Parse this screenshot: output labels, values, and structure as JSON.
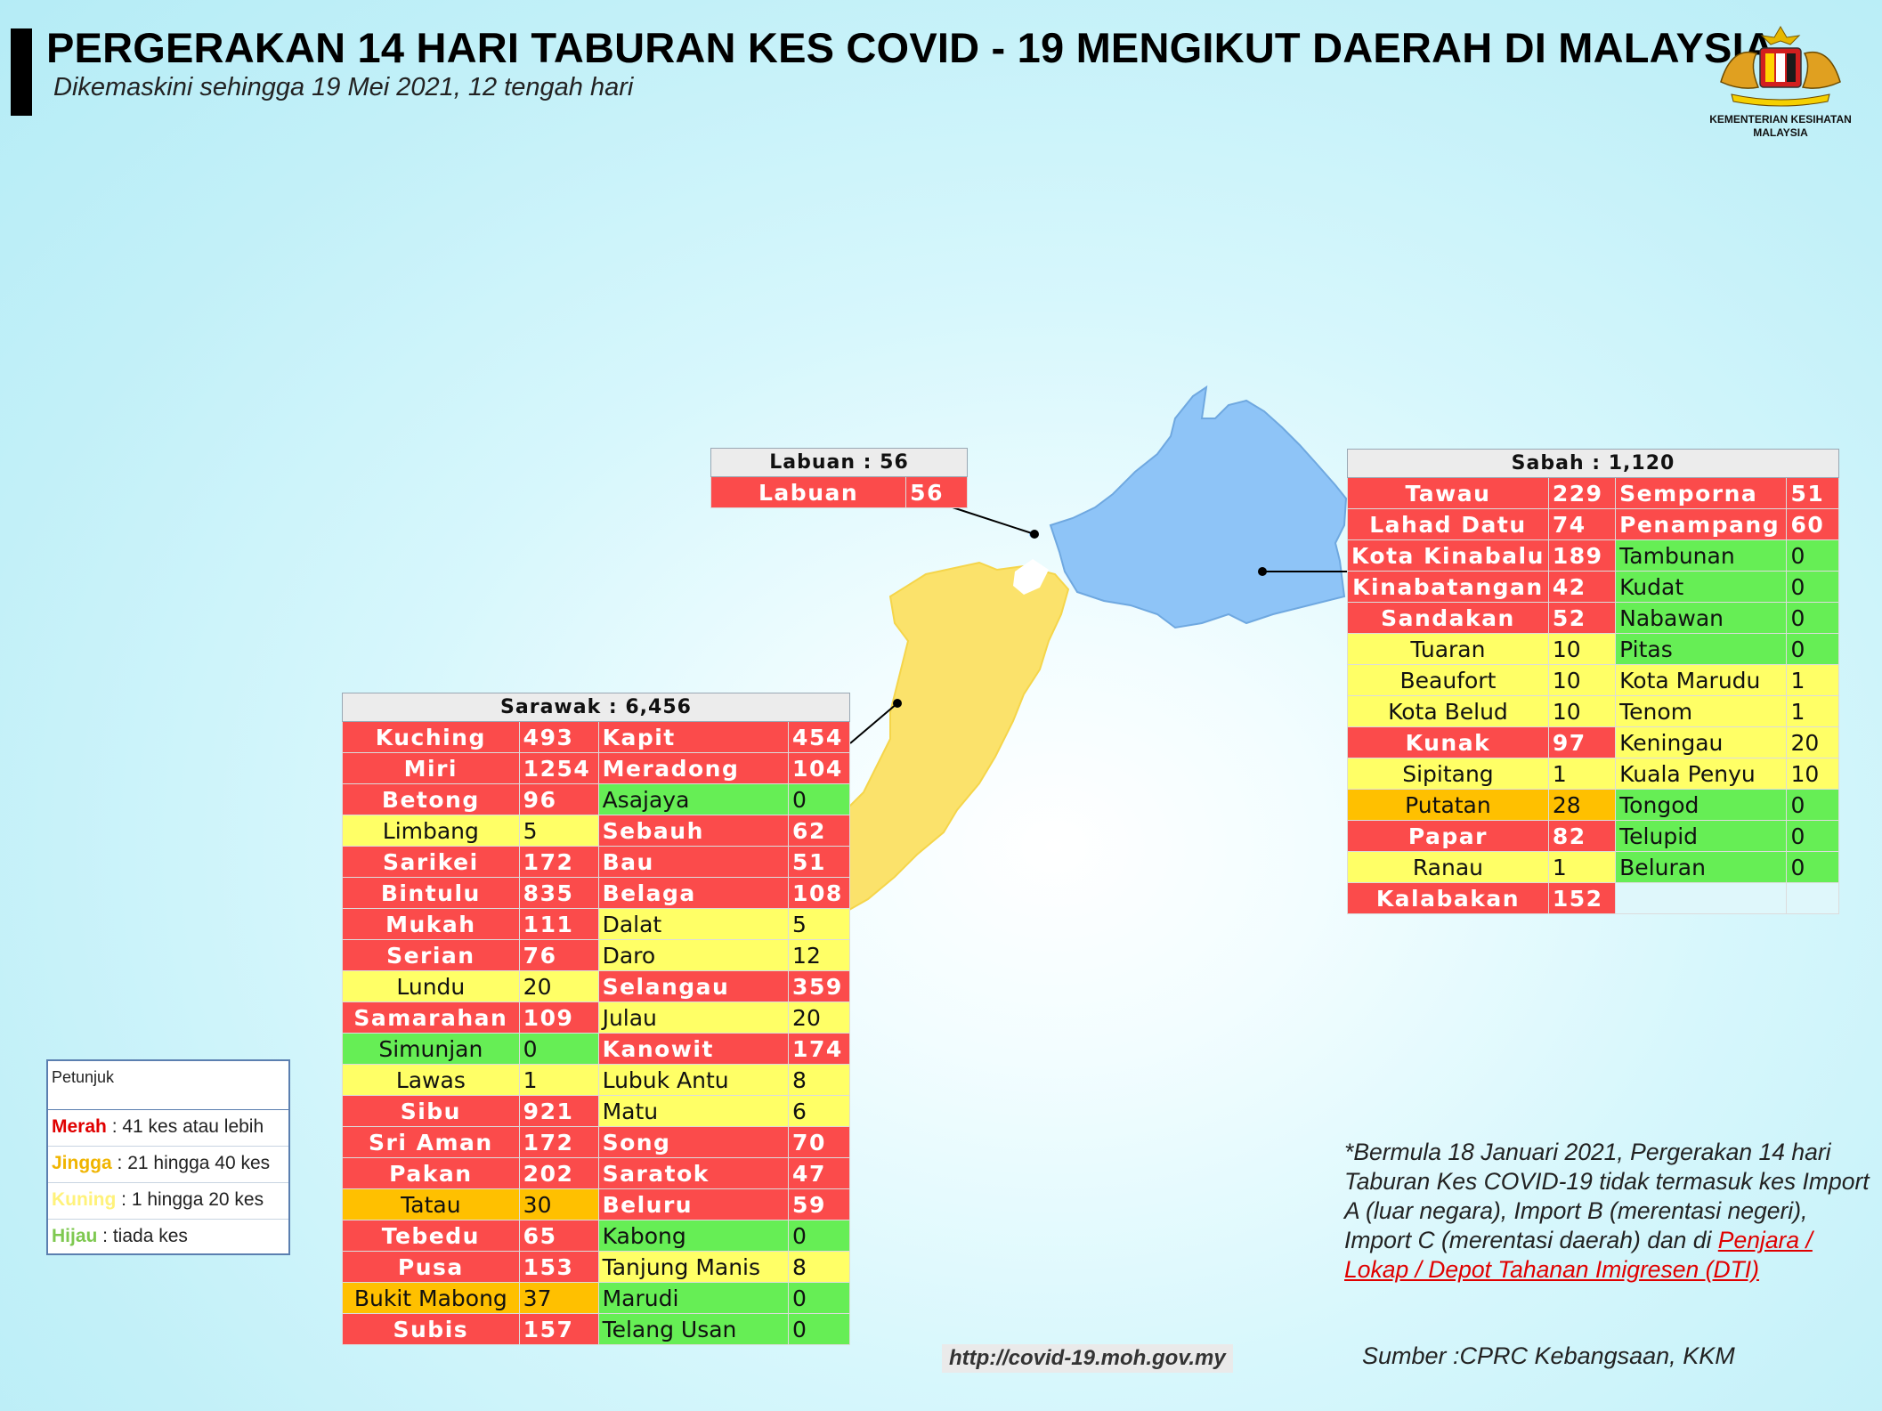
{
  "header": {
    "title": "PERGERAKAN 14 HARI TABURAN KES COVID - 19 MENGIKUT DAERAH DI MALAYSIA",
    "subtitle": "Dikemaskini sehingga 19 Mei 2021, 12 tengah hari"
  },
  "logo": {
    "line1": "KEMENTERIAN KESIHATAN",
    "line2": "MALAYSIA"
  },
  "colors": {
    "merah": "#fb4b4b",
    "jingga": "#ffc000",
    "kuning": "#ffff66",
    "hijau": "#66ee55",
    "sabah_map": "#8ec4f7",
    "sarawak_map": "#fbe26b"
  },
  "labuan": {
    "header": "Labuan : 56",
    "rows": [
      {
        "name": "Labuan",
        "count": "56",
        "level": "r"
      }
    ]
  },
  "sabah": {
    "header": "Sabah : 1,120",
    "rows": [
      [
        {
          "name": "Tawau",
          "count": "229",
          "level": "r"
        },
        {
          "name": "Semporna",
          "count": "51",
          "level": "r"
        }
      ],
      [
        {
          "name": "Lahad Datu",
          "count": "74",
          "level": "r"
        },
        {
          "name": "Penampang",
          "count": "60",
          "level": "r"
        }
      ],
      [
        {
          "name": "Kota Kinabalu",
          "count": "189",
          "level": "r"
        },
        {
          "name": "Tambunan",
          "count": "0",
          "level": "g"
        }
      ],
      [
        {
          "name": "Kinabatangan",
          "count": "42",
          "level": "r"
        },
        {
          "name": "Kudat",
          "count": "0",
          "level": "g"
        }
      ],
      [
        {
          "name": "Sandakan",
          "count": "52",
          "level": "r"
        },
        {
          "name": "Nabawan",
          "count": "0",
          "level": "g"
        }
      ],
      [
        {
          "name": "Tuaran",
          "count": "10",
          "level": "y"
        },
        {
          "name": "Pitas",
          "count": "0",
          "level": "g"
        }
      ],
      [
        {
          "name": "Beaufort",
          "count": "10",
          "level": "y"
        },
        {
          "name": "Kota Marudu",
          "count": "1",
          "level": "y"
        }
      ],
      [
        {
          "name": "Kota Belud",
          "count": "10",
          "level": "y"
        },
        {
          "name": "Tenom",
          "count": "1",
          "level": "y"
        }
      ],
      [
        {
          "name": "Kunak",
          "count": "97",
          "level": "r"
        },
        {
          "name": "Keningau",
          "count": "20",
          "level": "y"
        }
      ],
      [
        {
          "name": "Sipitang",
          "count": "1",
          "level": "y"
        },
        {
          "name": "Kuala Penyu",
          "count": "10",
          "level": "y"
        }
      ],
      [
        {
          "name": "Putatan",
          "count": "28",
          "level": "o"
        },
        {
          "name": "Tongod",
          "count": "0",
          "level": "g"
        }
      ],
      [
        {
          "name": "Papar",
          "count": "82",
          "level": "r"
        },
        {
          "name": "Telupid",
          "count": "0",
          "level": "g"
        }
      ],
      [
        {
          "name": "Ranau",
          "count": "1",
          "level": "y"
        },
        {
          "name": "Beluran",
          "count": "0",
          "level": "g"
        }
      ],
      [
        {
          "name": "Kalabakan",
          "count": "152",
          "level": "r"
        },
        {
          "name": "",
          "count": "",
          "level": "e"
        }
      ]
    ]
  },
  "sarawak": {
    "header": "Sarawak : 6,456",
    "rows": [
      [
        {
          "name": "Kuching",
          "count": "493",
          "level": "r"
        },
        {
          "name": "Kapit",
          "count": "454",
          "level": "r"
        }
      ],
      [
        {
          "name": "Miri",
          "count": "1254",
          "level": "r"
        },
        {
          "name": "Meradong",
          "count": "104",
          "level": "r"
        }
      ],
      [
        {
          "name": "Betong",
          "count": "96",
          "level": "r"
        },
        {
          "name": "Asajaya",
          "count": "0",
          "level": "g"
        }
      ],
      [
        {
          "name": "Limbang",
          "count": "5",
          "level": "y"
        },
        {
          "name": "Sebauh",
          "count": "62",
          "level": "r"
        }
      ],
      [
        {
          "name": "Sarikei",
          "count": "172",
          "level": "r"
        },
        {
          "name": "Bau",
          "count": "51",
          "level": "r"
        }
      ],
      [
        {
          "name": "Bintulu",
          "count": "835",
          "level": "r"
        },
        {
          "name": "Belaga",
          "count": "108",
          "level": "r"
        }
      ],
      [
        {
          "name": "Mukah",
          "count": "111",
          "level": "r"
        },
        {
          "name": "Dalat",
          "count": "5",
          "level": "y"
        }
      ],
      [
        {
          "name": "Serian",
          "count": "76",
          "level": "r"
        },
        {
          "name": "Daro",
          "count": "12",
          "level": "y"
        }
      ],
      [
        {
          "name": "Lundu",
          "count": "20",
          "level": "y"
        },
        {
          "name": "Selangau",
          "count": "359",
          "level": "r"
        }
      ],
      [
        {
          "name": "Samarahan",
          "count": "109",
          "level": "r"
        },
        {
          "name": "Julau",
          "count": "20",
          "level": "y"
        }
      ],
      [
        {
          "name": "Simunjan",
          "count": "0",
          "level": "g"
        },
        {
          "name": "Kanowit",
          "count": "174",
          "level": "r"
        }
      ],
      [
        {
          "name": "Lawas",
          "count": "1",
          "level": "y"
        },
        {
          "name": "Lubuk Antu",
          "count": "8",
          "level": "y"
        }
      ],
      [
        {
          "name": "Sibu",
          "count": "921",
          "level": "r"
        },
        {
          "name": "Matu",
          "count": "6",
          "level": "y"
        }
      ],
      [
        {
          "name": "Sri Aman",
          "count": "172",
          "level": "r"
        },
        {
          "name": "Song",
          "count": "70",
          "level": "r"
        }
      ],
      [
        {
          "name": "Pakan",
          "count": "202",
          "level": "r"
        },
        {
          "name": "Saratok",
          "count": "47",
          "level": "r"
        }
      ],
      [
        {
          "name": "Tatau",
          "count": "30",
          "level": "o"
        },
        {
          "name": "Beluru",
          "count": "59",
          "level": "r"
        }
      ],
      [
        {
          "name": "Tebedu",
          "count": "65",
          "level": "r"
        },
        {
          "name": "Kabong",
          "count": "0",
          "level": "g"
        }
      ],
      [
        {
          "name": "Pusa",
          "count": "153",
          "level": "r"
        },
        {
          "name": "Tanjung Manis",
          "count": "8",
          "level": "y"
        }
      ],
      [
        {
          "name": "Bukit Mabong",
          "count": "37",
          "level": "o"
        },
        {
          "name": "Marudi",
          "count": "0",
          "level": "g"
        }
      ],
      [
        {
          "name": "Subis",
          "count": "157",
          "level": "r"
        },
        {
          "name": "Telang Usan",
          "count": "0",
          "level": "g"
        }
      ]
    ]
  },
  "legend": {
    "title": "Petunjuk",
    "items": [
      {
        "key": "Merah",
        "desc": " : 41 kes atau lebih",
        "color": "#e00000"
      },
      {
        "key": "Jingga",
        "desc": " : 21 hingga 40 kes",
        "color": "#f0b400"
      },
      {
        "key": "Kuning",
        "desc": " : 1 hingga 20 kes",
        "color": "#fff27a"
      },
      {
        "key": "Hijau",
        "desc": " : tiada kes",
        "color": "#7ec850"
      }
    ]
  },
  "note": {
    "text": "*Bermula 18 Januari 2021, Pergerakan 14 hari Taburan Kes COVID-19 tidak termasuk kes Import A (luar negara), Import B (merentasi negeri), Import C (merentasi daerah) dan di ",
    "link": "Penjara / Lokap / Depot Tahanan Imigresen (DTI)"
  },
  "footer": {
    "url": "http://covid-19.moh.gov.my",
    "source": "Sumber :CPRC Kebangsaan,  KKM"
  }
}
